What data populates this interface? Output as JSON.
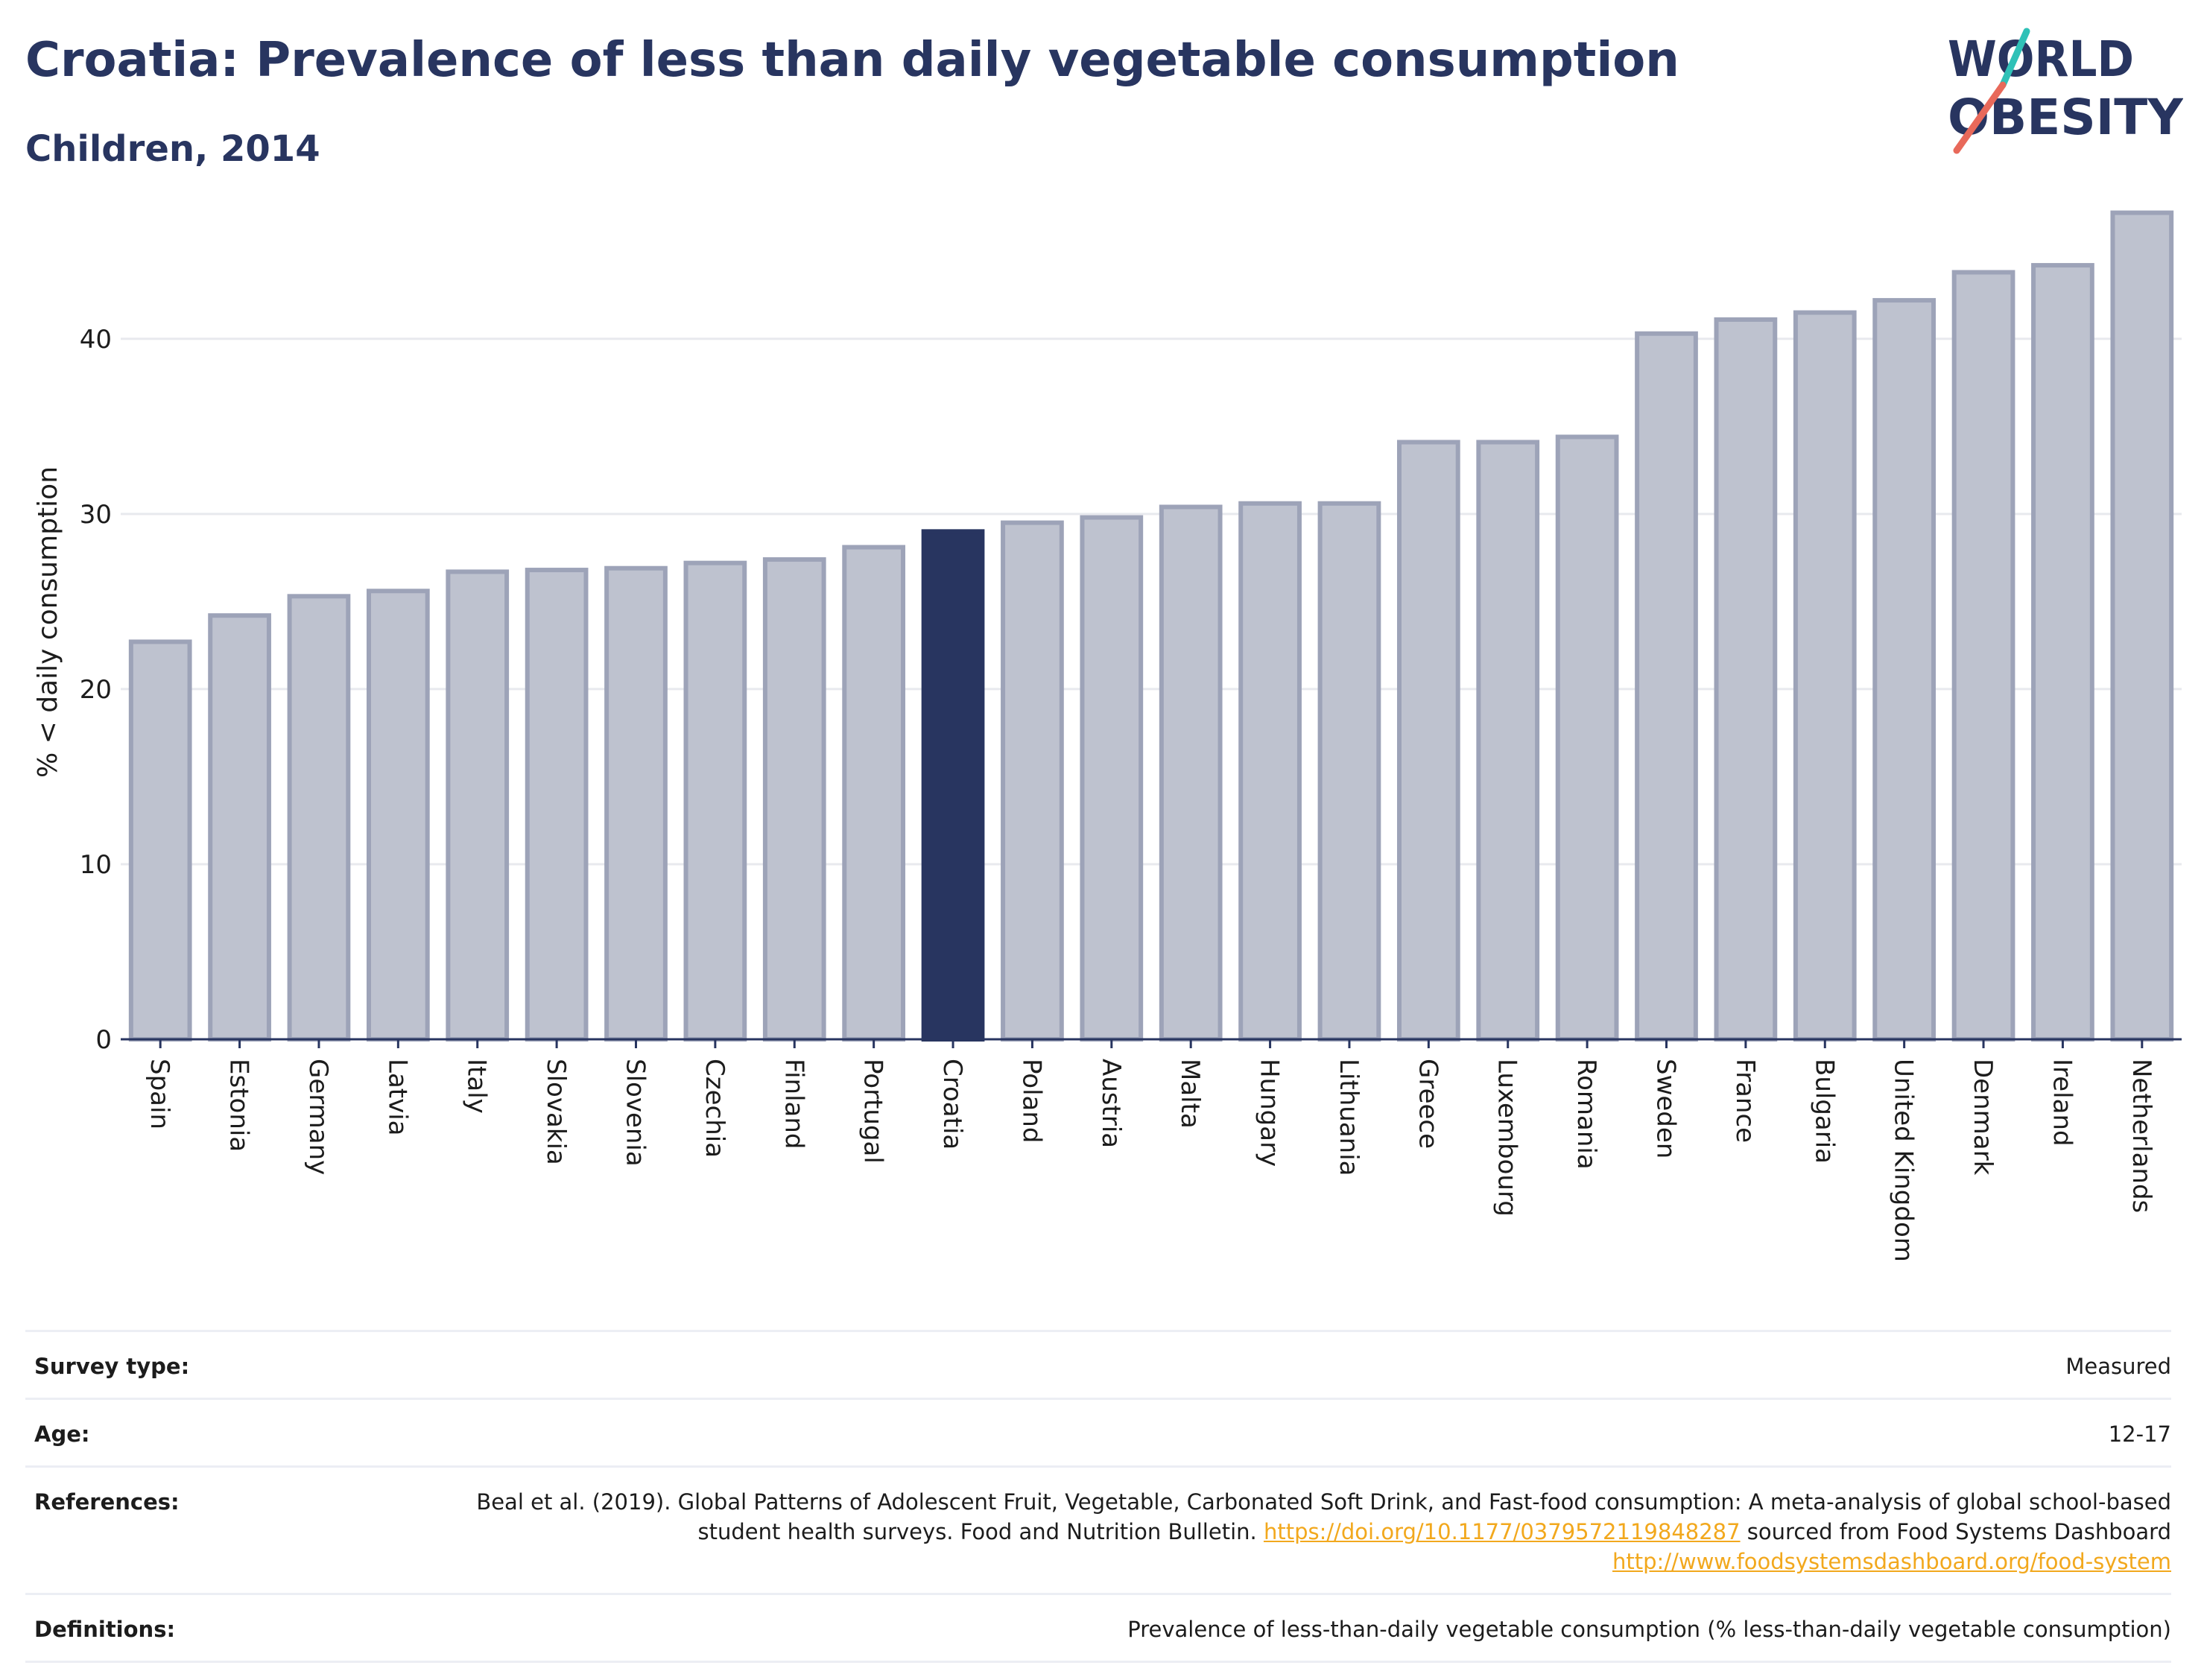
{
  "header": {
    "title": "Croatia: Prevalence of less than daily vegetable consumption",
    "subtitle": "Children, 2014"
  },
  "logo": {
    "line1": "WORLD",
    "line2": "OBESITY"
  },
  "chart_data": {
    "type": "bar",
    "title": "Croatia: Prevalence of less than daily vegetable consumption",
    "subtitle": "Children, 2014",
    "ylabel": "% < daily consumption",
    "xlabel": "",
    "ylim": [
      0,
      48.5
    ],
    "yticks": [
      0,
      10,
      20,
      30,
      40
    ],
    "grid": true,
    "highlight": "Croatia",
    "categories": [
      "Spain",
      "Estonia",
      "Germany",
      "Latvia",
      "Italy",
      "Slovakia",
      "Slovenia",
      "Czechia",
      "Finland",
      "Portugal",
      "Croatia",
      "Poland",
      "Austria",
      "Malta",
      "Hungary",
      "Lithuania",
      "Greece",
      "Luxembourg",
      "Romania",
      "Sweden",
      "France",
      "Bulgaria",
      "United Kingdom",
      "Denmark",
      "Ireland",
      "Netherlands"
    ],
    "values": [
      22.7,
      24.2,
      25.3,
      25.6,
      26.7,
      26.8,
      26.9,
      27.2,
      27.4,
      28.1,
      29.0,
      29.5,
      29.8,
      30.4,
      30.6,
      30.6,
      34.1,
      34.1,
      34.4,
      40.3,
      41.1,
      41.5,
      42.2,
      43.8,
      44.2,
      47.2
    ],
    "colors": {
      "bar": "#bec2cf",
      "bar_border": "#9da3b8",
      "highlight": "#283560",
      "axis": "#283560",
      "grid": "#e8e9ee"
    }
  },
  "info": {
    "rows": [
      {
        "label": "Survey type:",
        "value": "Measured"
      },
      {
        "label": "Age:",
        "value": "12-17"
      },
      {
        "label": "References:",
        "text1": "Beal et al. (2019). Global Patterns of Adolescent Fruit, Vegetable, Carbonated Soft Drink, and Fast-food consumption: A meta-analysis of global school-based student health surveys. Food and Nutrition Bulletin. ",
        "link1": "https://doi.org/10.1177/0379572119848287",
        "text2": " sourced from Food Systems Dashboard ",
        "link2": "http://www.foodsystemsdashboard.org/food-system"
      },
      {
        "label": "Definitions:",
        "value": "Prevalence of less-than-daily vegetable consumption (% less-than-daily vegetable consumption)"
      }
    ]
  }
}
